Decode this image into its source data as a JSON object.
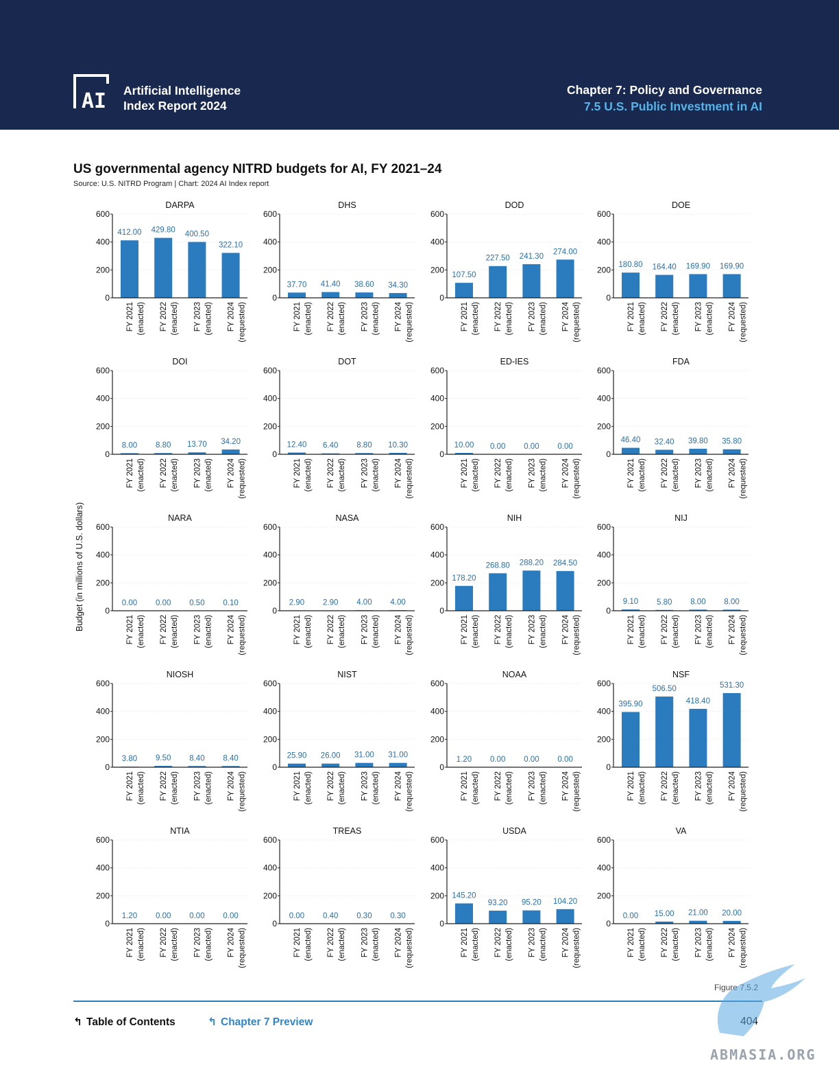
{
  "header": {
    "logo_text": "AI",
    "report_line1": "Artificial Intelligence",
    "report_line2": "Index Report 2024",
    "chapter": "Chapter 7: Policy and Governance",
    "section": "7.5 U.S. Public Investment in AI"
  },
  "figure": {
    "title": "US governmental agency NITRD budgets for AI, FY 2021–24",
    "source": "Source: U.S. NITRD Program | Chart: 2024 AI Index report",
    "label": "Figure 7.5.2"
  },
  "colors": {
    "bar": "#2b7bbf",
    "value_label": "#2b6fa8",
    "header_bg": "#18284f",
    "accent": "#56b4e9"
  },
  "chart_data": {
    "type": "bar",
    "ylabel": "Budget (in millions of U.S. dollars)",
    "ylim": [
      0,
      600
    ],
    "yticks": [
      "0",
      "200",
      "400",
      "600"
    ],
    "categories": [
      [
        "FY 2021",
        "(enacted)"
      ],
      [
        "FY 2022",
        "(enacted)"
      ],
      [
        "FY 2023",
        "(enacted)"
      ],
      [
        "FY 2024",
        "(requested)"
      ]
    ],
    "panels": [
      {
        "name": "DARPA",
        "values": [
          412.0,
          429.8,
          400.5,
          322.1
        ],
        "labels": [
          "412.00",
          "429.80",
          "400.50",
          "322.10"
        ]
      },
      {
        "name": "DHS",
        "values": [
          37.7,
          41.4,
          38.6,
          34.3
        ],
        "labels": [
          "37.70",
          "41.40",
          "38.60",
          "34.30"
        ]
      },
      {
        "name": "DOD",
        "values": [
          107.5,
          227.5,
          241.3,
          274.0
        ],
        "labels": [
          "107.50",
          "227.50",
          "241.30",
          "274.00"
        ]
      },
      {
        "name": "DOE",
        "values": [
          180.8,
          164.4,
          169.9,
          169.9
        ],
        "labels": [
          "180.80",
          "164.40",
          "169.90",
          "169.90"
        ]
      },
      {
        "name": "DOI",
        "values": [
          8.0,
          8.8,
          13.7,
          34.2
        ],
        "labels": [
          "8.00",
          "8.80",
          "13.70",
          "34.20"
        ]
      },
      {
        "name": "DOT",
        "values": [
          12.4,
          6.4,
          8.8,
          10.3
        ],
        "labels": [
          "12.40",
          "6.40",
          "8.80",
          "10.30"
        ]
      },
      {
        "name": "ED-IES",
        "values": [
          10.0,
          0.0,
          0.0,
          0.0
        ],
        "labels": [
          "10.00",
          "0.00",
          "0.00",
          "0.00"
        ]
      },
      {
        "name": "FDA",
        "values": [
          46.4,
          32.4,
          39.8,
          35.8
        ],
        "labels": [
          "46.40",
          "32.40",
          "39.80",
          "35.80"
        ]
      },
      {
        "name": "NARA",
        "values": [
          0.0,
          0.0,
          0.5,
          0.1
        ],
        "labels": [
          "0.00",
          "0.00",
          "0.50",
          "0.10"
        ]
      },
      {
        "name": "NASA",
        "values": [
          2.9,
          2.9,
          4.0,
          4.0
        ],
        "labels": [
          "2.90",
          "2.90",
          "4.00",
          "4.00"
        ]
      },
      {
        "name": "NIH",
        "values": [
          178.2,
          268.8,
          288.2,
          284.5
        ],
        "labels": [
          "178.20",
          "268.80",
          "288.20",
          "284.50"
        ]
      },
      {
        "name": "NIJ",
        "values": [
          9.1,
          5.8,
          8.0,
          8.0
        ],
        "labels": [
          "9.10",
          "5.80",
          "8.00",
          "8.00"
        ]
      },
      {
        "name": "NIOSH",
        "values": [
          3.8,
          9.5,
          8.4,
          8.4
        ],
        "labels": [
          "3.80",
          "9.50",
          "8.40",
          "8.40"
        ]
      },
      {
        "name": "NIST",
        "values": [
          25.9,
          26.0,
          31.0,
          31.0
        ],
        "labels": [
          "25.90",
          "26.00",
          "31.00",
          "31.00"
        ]
      },
      {
        "name": "NOAA",
        "values": [
          1.2,
          0.0,
          0.0,
          0.0
        ],
        "labels": [
          "1.20",
          "0.00",
          "0.00",
          "0.00"
        ]
      },
      {
        "name": "NSF",
        "values": [
          395.9,
          506.5,
          418.4,
          531.3
        ],
        "labels": [
          "395.90",
          "506.50",
          "418.40",
          "531.30"
        ]
      },
      {
        "name": "NTIA",
        "values": [
          1.2,
          0.0,
          0.0,
          0.0
        ],
        "labels": [
          "1.20",
          "0.00",
          "0.00",
          "0.00"
        ]
      },
      {
        "name": "TREAS",
        "values": [
          0.0,
          0.4,
          0.3,
          0.3
        ],
        "labels": [
          "0.00",
          "0.40",
          "0.30",
          "0.30"
        ]
      },
      {
        "name": "USDA",
        "values": [
          145.2,
          93.2,
          95.2,
          104.2
        ],
        "labels": [
          "145.20",
          "93.20",
          "95.20",
          "104.20"
        ]
      },
      {
        "name": "VA",
        "values": [
          0.0,
          15.0,
          21.0,
          20.0
        ],
        "labels": [
          "0.00",
          "15.00",
          "21.00",
          "20.00"
        ]
      }
    ]
  },
  "footer": {
    "toc": "Table of Contents",
    "preview": "Chapter 7 Preview",
    "page": "404",
    "watermark": "ABMASIA.ORG"
  }
}
